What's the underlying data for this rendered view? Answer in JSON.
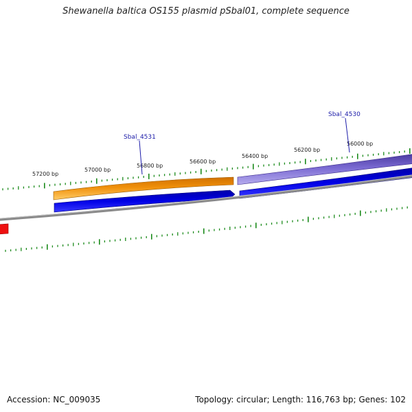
{
  "title": "Shewanella baltica OS155 plasmid pSbal01, complete sequence",
  "footer": {
    "accession": "Accession: NC_009035",
    "summary": "Topology: circular; Length: 116,763 bp; Genes: 102"
  },
  "scale_labels": [
    "57200 bp",
    "57000 bp",
    "56800 bp",
    "56600 bp",
    "56400 bp",
    "56200 bp",
    "56000 bp"
  ],
  "gene_labels": [
    "Sbal_4531",
    "Sbal_4530"
  ],
  "colors": {
    "background": "#ffffff",
    "backbone": "#8a8a8a",
    "tick_marks": "#1a8a1a",
    "label_text": "#1a1aa8",
    "cds_blue": "#0000e6",
    "cds_orange": "#f0900a",
    "cds_purple": "#7a6ad2",
    "feature_red": "#ee1111"
  }
}
